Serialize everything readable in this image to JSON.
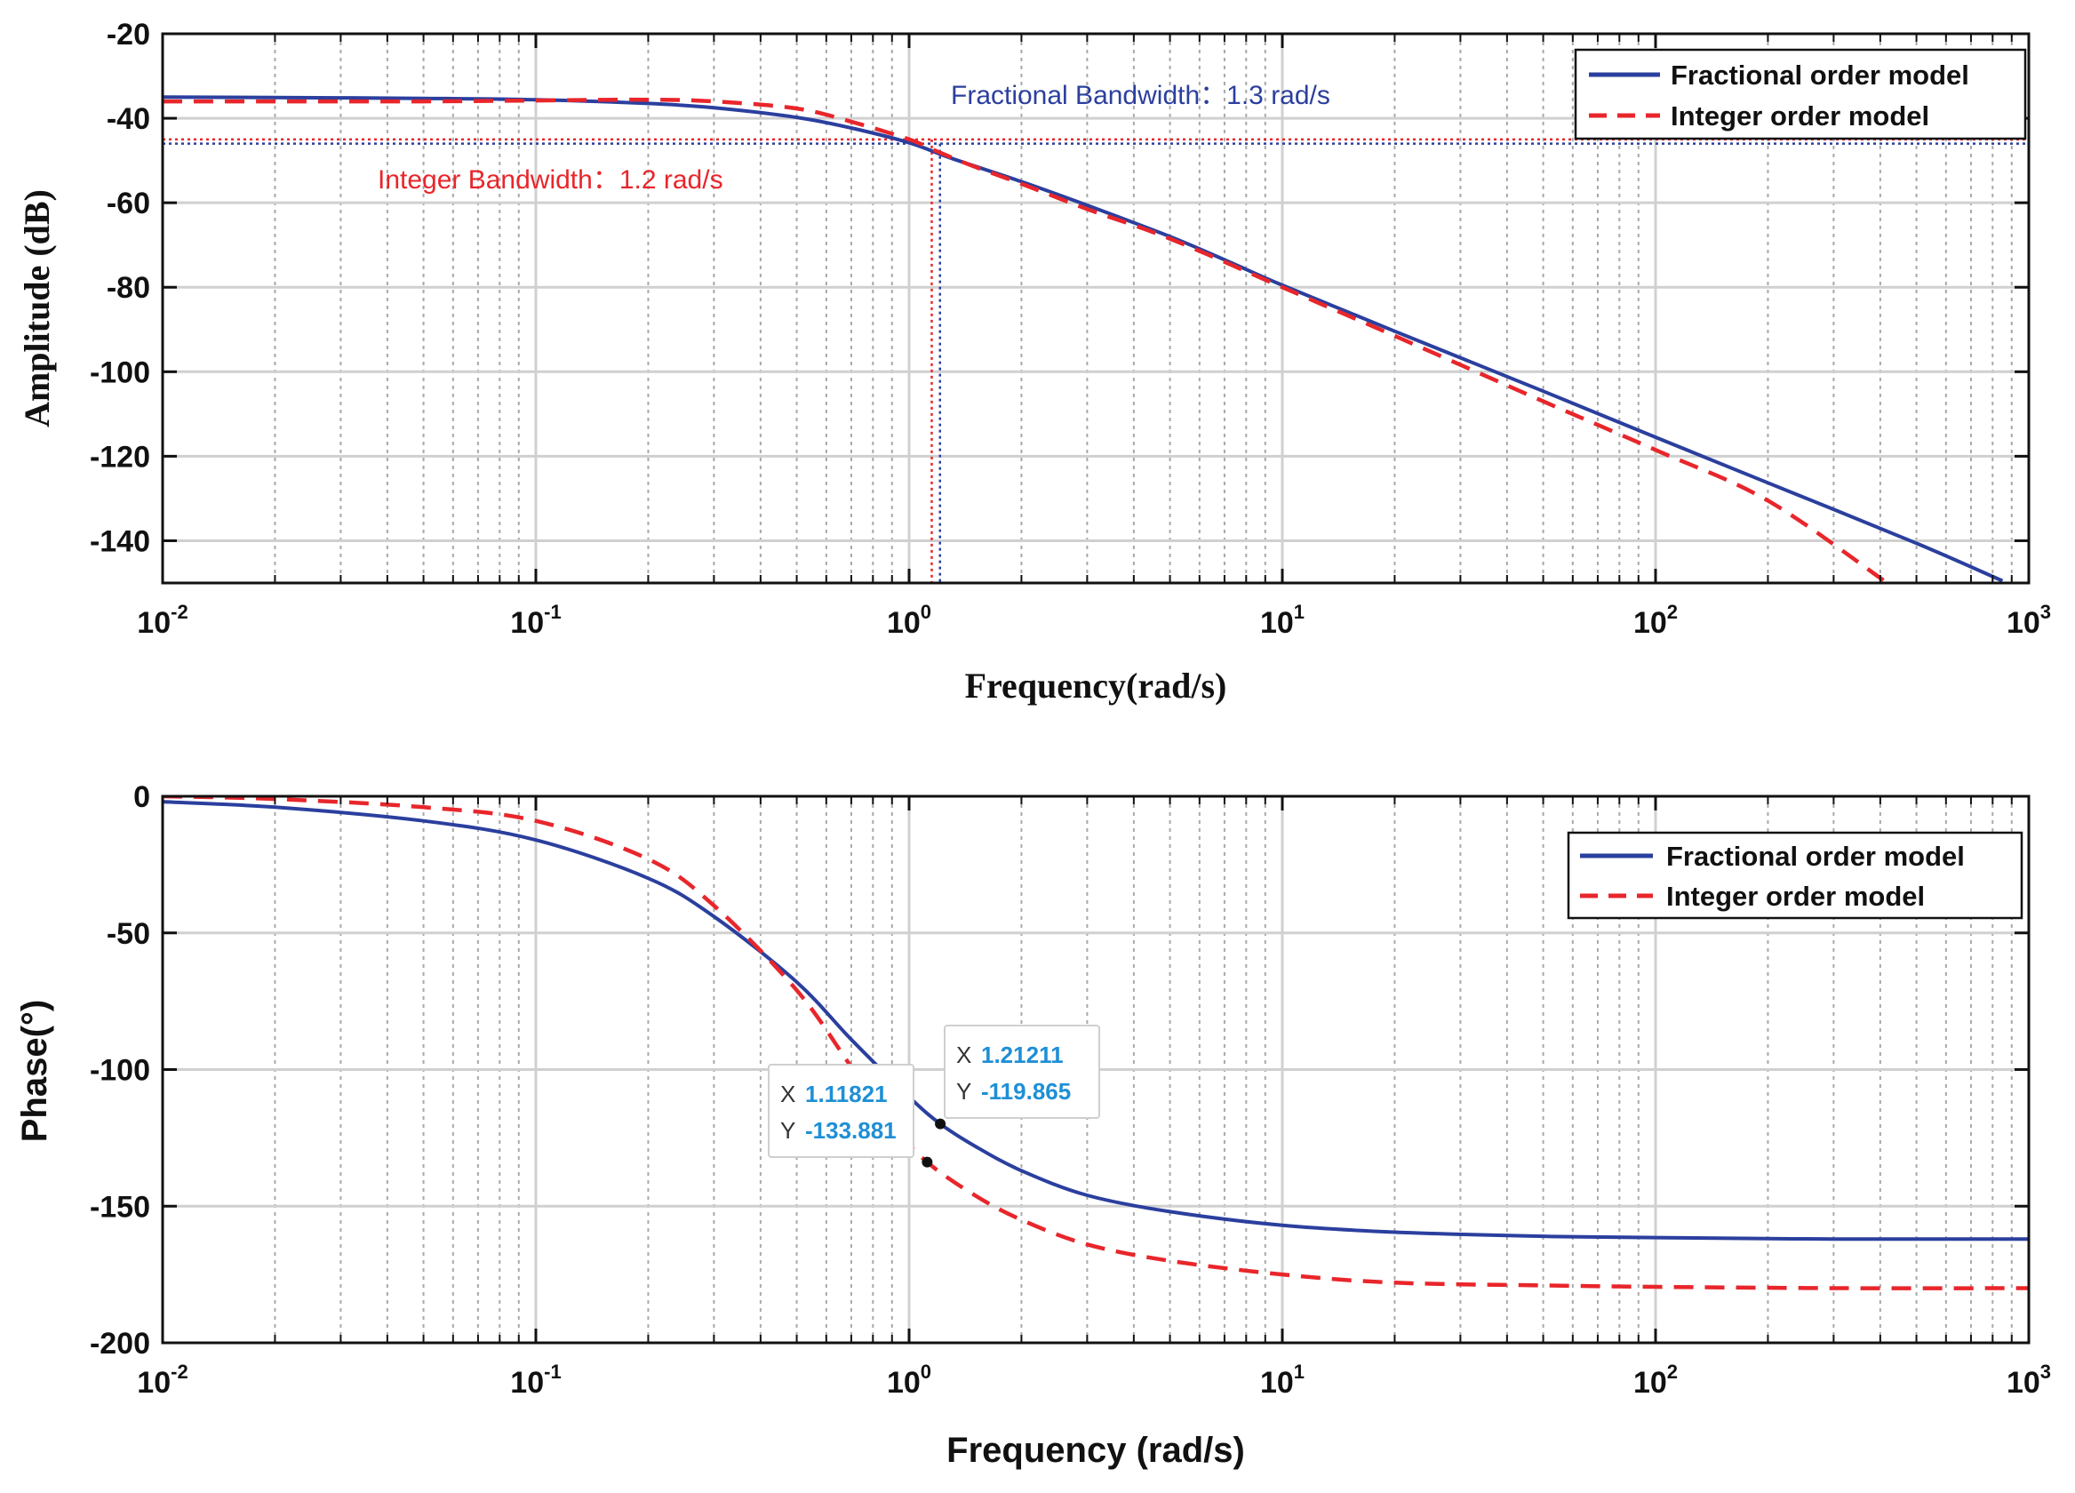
{
  "colors": {
    "fractional": "#2b3f9e",
    "integer": "#e8262b",
    "grid_major": "#d0d0d0",
    "grid_minor": "#a8a8a8",
    "tooltip_value": "#1f8fd6"
  },
  "chart_data": [
    {
      "type": "line",
      "xscale": "log",
      "xlim": [
        0.01,
        1000
      ],
      "ylim": [
        -150,
        -20
      ],
      "yticks": [
        -20,
        -40,
        -60,
        -80,
        -100,
        -120,
        -140
      ],
      "xtick_labels": [
        {
          "base": "10",
          "exp": "-2"
        },
        {
          "base": "10",
          "exp": "-1"
        },
        {
          "base": "10",
          "exp": "0"
        },
        {
          "base": "10",
          "exp": "1"
        },
        {
          "base": "10",
          "exp": "2"
        },
        {
          "base": "10",
          "exp": "3"
        }
      ],
      "xlabel": "Frequency(rad/s)",
      "ylabel": "Amplitude (dB)",
      "grid": true,
      "legend_position": "top-right",
      "series": [
        {
          "name": "Fractional order model",
          "style": "solid",
          "x": [
            0.01,
            0.02,
            0.05,
            0.1,
            0.2,
            0.3,
            0.5,
            0.7,
            1.0,
            1.3,
            2,
            3,
            5,
            7,
            10,
            20,
            50,
            100,
            200,
            500,
            850
          ],
          "y": [
            -35,
            -35.1,
            -35.3,
            -35.6,
            -36.5,
            -37.5,
            -39.8,
            -42.3,
            -45.8,
            -49.5,
            -55,
            -60.6,
            -68,
            -73.5,
            -79.5,
            -90.4,
            -104.6,
            -115.5,
            -126.3,
            -140.6,
            -149.5
          ]
        },
        {
          "name": "Integer order model",
          "style": "dashed",
          "x": [
            0.01,
            0.02,
            0.05,
            0.1,
            0.2,
            0.3,
            0.5,
            0.7,
            1.0,
            1.2,
            1.5,
            2,
            3,
            5,
            10,
            20,
            50,
            100,
            200,
            410
          ],
          "y": [
            -36,
            -36,
            -36,
            -35.8,
            -35.6,
            -36,
            -37.7,
            -40.8,
            -45,
            -48,
            -51.5,
            -55.5,
            -61.5,
            -68.5,
            -80,
            -91.5,
            -107,
            -118.5,
            -130.5,
            -149.5
          ]
        }
      ],
      "annotations": [
        {
          "text": "Fractional Bandwidth：1.3 rad/s",
          "color": "fractional"
        },
        {
          "text": "Integer Bandwidth：1.2 rad/s",
          "color": "integer"
        }
      ],
      "reference_lines": [
        {
          "series": "Fractional order model",
          "y": -46,
          "x": 1.21
        },
        {
          "series": "Integer order model",
          "y": -45,
          "x": 1.15
        }
      ]
    },
    {
      "type": "line",
      "xscale": "log",
      "xlim": [
        0.01,
        1000
      ],
      "ylim": [
        -200,
        0
      ],
      "yticks": [
        0,
        -50,
        -100,
        -150,
        -200
      ],
      "xtick_labels": [
        {
          "base": "10",
          "exp": "-2"
        },
        {
          "base": "10",
          "exp": "-1"
        },
        {
          "base": "10",
          "exp": "0"
        },
        {
          "base": "10",
          "exp": "1"
        },
        {
          "base": "10",
          "exp": "2"
        },
        {
          "base": "10",
          "exp": "3"
        }
      ],
      "xlabel": "Frequency (rad/s)",
      "ylabel": "Phase(°)",
      "grid": true,
      "legend_position": "top-right",
      "series": [
        {
          "name": "Fractional order model",
          "style": "solid",
          "x": [
            0.01,
            0.02,
            0.05,
            0.1,
            0.2,
            0.3,
            0.5,
            0.7,
            1.0,
            1.21211,
            1.5,
            2,
            3,
            5,
            10,
            20,
            50,
            100,
            300,
            1000
          ],
          "y": [
            -2,
            -4,
            -9,
            -16,
            -30,
            -44,
            -68,
            -89,
            -110,
            -119.865,
            -128,
            -137,
            -146,
            -152,
            -157,
            -159.5,
            -161,
            -161.5,
            -162,
            -162
          ]
        },
        {
          "name": "Integer order model",
          "style": "dashed",
          "x": [
            0.01,
            0.02,
            0.05,
            0.1,
            0.2,
            0.3,
            0.5,
            0.7,
            0.9,
            1.11821,
            1.5,
            2,
            3,
            5,
            10,
            20,
            50,
            100,
            300,
            1000
          ],
          "y": [
            0,
            -1,
            -4,
            -9,
            -23,
            -40,
            -71,
            -99,
            -120,
            -133.881,
            -146,
            -155,
            -164,
            -170,
            -175,
            -178,
            -179,
            -179.5,
            -180,
            -180
          ]
        }
      ],
      "datatips": [
        {
          "x_key": "X",
          "x_value": "1.11821",
          "y_key": "Y",
          "y_value": "-133.881",
          "x": 1.11821,
          "y": -133.881
        },
        {
          "x_key": "X",
          "x_value": "1.21211",
          "y_key": "Y",
          "y_value": "-119.865",
          "x": 1.21211,
          "y": -119.865
        }
      ]
    }
  ]
}
